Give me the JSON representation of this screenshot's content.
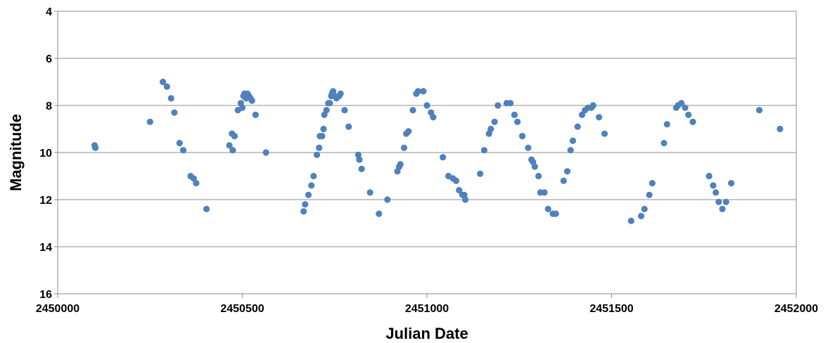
{
  "chart_data": {
    "type": "scatter",
    "title": "",
    "xlabel": "Julian Date",
    "ylabel": "Magnitude",
    "xlim": [
      2450000,
      2452000
    ],
    "ylim": [
      4,
      16
    ],
    "y_inverted": true,
    "grid": "horizontal",
    "legend": "none",
    "x_ticks": [
      2450000,
      2450500,
      2451000,
      2451500,
      2452000
    ],
    "y_ticks": [
      4,
      6,
      8,
      10,
      12,
      14,
      16
    ],
    "x_tick_labels": [
      "2450000",
      "2450500",
      "2451000",
      "2451500",
      "2452000"
    ],
    "y_tick_labels": [
      "4",
      "6",
      "8",
      "10",
      "12",
      "14",
      "16"
    ],
    "marker_color": "#4f81bd",
    "series": [
      {
        "points": [
          [
            2450100,
            9.7
          ],
          [
            2450102,
            9.8
          ],
          [
            2450250,
            8.7
          ],
          [
            2450285,
            7.0
          ],
          [
            2450296,
            7.2
          ],
          [
            2450307,
            7.7
          ],
          [
            2450316,
            8.3
          ],
          [
            2450330,
            9.6
          ],
          [
            2450340,
            9.9
          ],
          [
            2450360,
            11.0
          ],
          [
            2450368,
            11.1
          ],
          [
            2450375,
            11.3
          ],
          [
            2450403,
            12.4
          ],
          [
            2450465,
            9.7
          ],
          [
            2450472,
            9.2
          ],
          [
            2450474,
            9.9
          ],
          [
            2450479,
            9.3
          ],
          [
            2450488,
            8.2
          ],
          [
            2450496,
            7.9
          ],
          [
            2450500,
            8.1
          ],
          [
            2450503,
            7.6
          ],
          [
            2450506,
            7.5
          ],
          [
            2450510,
            7.7
          ],
          [
            2450514,
            7.5
          ],
          [
            2450518,
            7.6
          ],
          [
            2450522,
            7.7
          ],
          [
            2450526,
            7.8
          ],
          [
            2450536,
            8.4
          ],
          [
            2450564,
            10.0
          ],
          [
            2450666,
            12.5
          ],
          [
            2450670,
            12.2
          ],
          [
            2450679,
            11.8
          ],
          [
            2450687,
            11.4
          ],
          [
            2450693,
            11.0
          ],
          [
            2450702,
            10.1
          ],
          [
            2450708,
            9.8
          ],
          [
            2450710,
            9.3
          ],
          [
            2450716,
            9.3
          ],
          [
            2450720,
            9.0
          ],
          [
            2450722,
            8.4
          ],
          [
            2450728,
            8.2
          ],
          [
            2450733,
            7.9
          ],
          [
            2450737,
            7.9
          ],
          [
            2450741,
            7.6
          ],
          [
            2450743,
            7.5
          ],
          [
            2450746,
            7.4
          ],
          [
            2450750,
            7.6
          ],
          [
            2450755,
            7.7
          ],
          [
            2450762,
            7.6
          ],
          [
            2450766,
            7.5
          ],
          [
            2450777,
            8.2
          ],
          [
            2450788,
            8.9
          ],
          [
            2450814,
            10.1
          ],
          [
            2450817,
            10.3
          ],
          [
            2450823,
            10.7
          ],
          [
            2450846,
            11.7
          ],
          [
            2450870,
            12.6
          ],
          [
            2450893,
            12.0
          ],
          [
            2450920,
            10.8
          ],
          [
            2450925,
            10.6
          ],
          [
            2450928,
            10.5
          ],
          [
            2450938,
            9.8
          ],
          [
            2450944,
            9.2
          ],
          [
            2450950,
            9.1
          ],
          [
            2450962,
            8.2
          ],
          [
            2450971,
            7.5
          ],
          [
            2450976,
            7.4
          ],
          [
            2450990,
            7.4
          ],
          [
            2451000,
            8.0
          ],
          [
            2451011,
            8.3
          ],
          [
            2451017,
            8.5
          ],
          [
            2451043,
            10.2
          ],
          [
            2451058,
            11.0
          ],
          [
            2451070,
            11.1
          ],
          [
            2451079,
            11.2
          ],
          [
            2451087,
            11.6
          ],
          [
            2451096,
            11.8
          ],
          [
            2451101,
            11.8
          ],
          [
            2451104,
            12.0
          ],
          [
            2451144,
            10.9
          ],
          [
            2451155,
            9.9
          ],
          [
            2451168,
            9.2
          ],
          [
            2451173,
            9.0
          ],
          [
            2451183,
            8.7
          ],
          [
            2451192,
            8.0
          ],
          [
            2451216,
            7.9
          ],
          [
            2451226,
            7.9
          ],
          [
            2451237,
            8.4
          ],
          [
            2451245,
            8.7
          ],
          [
            2451258,
            9.3
          ],
          [
            2451274,
            9.8
          ],
          [
            2451283,
            10.3
          ],
          [
            2451287,
            10.4
          ],
          [
            2451292,
            10.6
          ],
          [
            2451302,
            11.0
          ],
          [
            2451307,
            11.7
          ],
          [
            2451318,
            11.7
          ],
          [
            2451328,
            12.4
          ],
          [
            2451341,
            12.6
          ],
          [
            2451349,
            12.6
          ],
          [
            2451370,
            11.2
          ],
          [
            2451380,
            10.8
          ],
          [
            2451389,
            9.9
          ],
          [
            2451395,
            9.5
          ],
          [
            2451408,
            8.9
          ],
          [
            2451420,
            8.4
          ],
          [
            2451428,
            8.2
          ],
          [
            2451436,
            8.1
          ],
          [
            2451445,
            8.1
          ],
          [
            2451450,
            8.0
          ],
          [
            2451466,
            8.5
          ],
          [
            2451481,
            9.2
          ],
          [
            2451553,
            12.9
          ],
          [
            2451580,
            12.7
          ],
          [
            2451589,
            12.4
          ],
          [
            2451602,
            11.8
          ],
          [
            2451610,
            11.3
          ],
          [
            2451642,
            9.6
          ],
          [
            2451650,
            8.8
          ],
          [
            2451675,
            8.1
          ],
          [
            2451680,
            8.0
          ],
          [
            2451689,
            7.9
          ],
          [
            2451699,
            8.1
          ],
          [
            2451708,
            8.4
          ],
          [
            2451720,
            8.7
          ],
          [
            2451764,
            11.0
          ],
          [
            2451775,
            11.4
          ],
          [
            2451782,
            11.7
          ],
          [
            2451790,
            12.1
          ],
          [
            2451800,
            12.4
          ],
          [
            2451810,
            12.1
          ],
          [
            2451824,
            11.3
          ],
          [
            2451900,
            8.2
          ],
          [
            2451956,
            9.0
          ]
        ]
      }
    ]
  }
}
